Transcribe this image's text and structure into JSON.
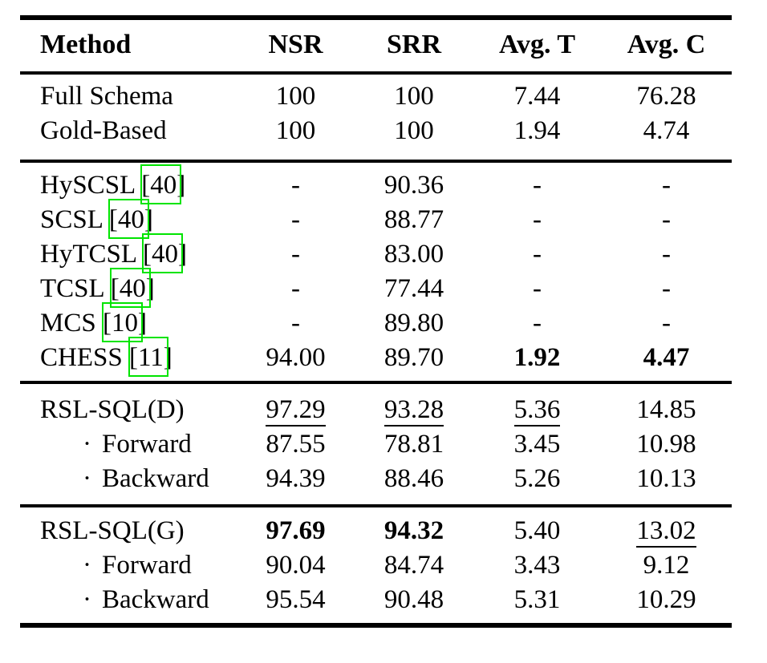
{
  "table": {
    "columns": [
      "Method",
      "NSR",
      "SRR",
      "Avg. T",
      "Avg. C"
    ],
    "bullet_char": "·",
    "link_box_color": "#00e400",
    "rule_color": "#000000",
    "sections": [
      {
        "name": "oracle",
        "rows": [
          {
            "method": {
              "label": "Full Schema"
            },
            "cells": [
              {
                "t": "100"
              },
              {
                "t": "100"
              },
              {
                "t": "7.44"
              },
              {
                "t": "76.28"
              }
            ]
          },
          {
            "method": {
              "label": "Gold-Based"
            },
            "cells": [
              {
                "t": "100"
              },
              {
                "t": "100"
              },
              {
                "t": "1.94"
              },
              {
                "t": "4.74"
              }
            ]
          }
        ]
      },
      {
        "name": "baselines",
        "rows": [
          {
            "method": {
              "label": "HySCSL",
              "cite": "[40]"
            },
            "cells": [
              {
                "t": "-"
              },
              {
                "t": "90.36"
              },
              {
                "t": "-"
              },
              {
                "t": "-"
              }
            ]
          },
          {
            "method": {
              "label": "SCSL",
              "cite": "[40]"
            },
            "cells": [
              {
                "t": "-"
              },
              {
                "t": "88.77"
              },
              {
                "t": "-"
              },
              {
                "t": "-"
              }
            ]
          },
          {
            "method": {
              "label": "HyTCSL",
              "cite": "[40]"
            },
            "cells": [
              {
                "t": "-"
              },
              {
                "t": "83.00"
              },
              {
                "t": "-"
              },
              {
                "t": "-"
              }
            ]
          },
          {
            "method": {
              "label": "TCSL",
              "cite": "[40]"
            },
            "cells": [
              {
                "t": "-"
              },
              {
                "t": "77.44"
              },
              {
                "t": "-"
              },
              {
                "t": "-"
              }
            ]
          },
          {
            "method": {
              "label": "MCS",
              "cite": "[10]"
            },
            "cells": [
              {
                "t": "-"
              },
              {
                "t": "89.80"
              },
              {
                "t": "-"
              },
              {
                "t": "-"
              }
            ]
          },
          {
            "method": {
              "label": "CHESS",
              "cite": "[11]"
            },
            "cells": [
              {
                "t": "94.00"
              },
              {
                "t": "89.70"
              },
              {
                "t": "1.92",
                "style": "bold"
              },
              {
                "t": "4.47",
                "style": "bold"
              }
            ]
          }
        ]
      },
      {
        "name": "rsl-sql-d",
        "rows": [
          {
            "method": {
              "label": "RSL-SQL(D)"
            },
            "cells": [
              {
                "t": "97.29",
                "style": "underline"
              },
              {
                "t": "93.28",
                "style": "underline"
              },
              {
                "t": "5.36",
                "style": "underline"
              },
              {
                "t": "14.85"
              }
            ]
          },
          {
            "method": {
              "label": "Forward",
              "bullet": true
            },
            "cells": [
              {
                "t": "87.55"
              },
              {
                "t": "78.81"
              },
              {
                "t": "3.45"
              },
              {
                "t": "10.98"
              }
            ]
          },
          {
            "method": {
              "label": "Backward",
              "bullet": true
            },
            "cells": [
              {
                "t": "94.39"
              },
              {
                "t": "88.46"
              },
              {
                "t": "5.26"
              },
              {
                "t": "10.13"
              }
            ]
          }
        ]
      },
      {
        "name": "rsl-sql-g",
        "rows": [
          {
            "method": {
              "label": "RSL-SQL(G)"
            },
            "cells": [
              {
                "t": "97.69",
                "style": "bold"
              },
              {
                "t": "94.32",
                "style": "bold"
              },
              {
                "t": "5.40"
              },
              {
                "t": "13.02",
                "style": "underline"
              }
            ]
          },
          {
            "method": {
              "label": "Forward",
              "bullet": true
            },
            "cells": [
              {
                "t": "90.04"
              },
              {
                "t": "84.74"
              },
              {
                "t": "3.43"
              },
              {
                "t": "9.12"
              }
            ]
          },
          {
            "method": {
              "label": "Backward",
              "bullet": true
            },
            "cells": [
              {
                "t": "95.54"
              },
              {
                "t": "90.48"
              },
              {
                "t": "5.31"
              },
              {
                "t": "10.29"
              }
            ]
          }
        ]
      }
    ]
  }
}
